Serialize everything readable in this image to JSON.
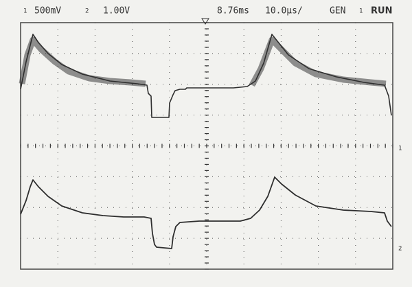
{
  "header": {
    "ch1_marker": "1",
    "ch1_scale": "500mV",
    "ch2_marker": "2",
    "ch2_scale": "1.00V",
    "trigger_delay": "8.76ms",
    "timebase": "10.0µs/",
    "mode": "GEN",
    "trigger_source": "1",
    "status": "RUN"
  },
  "markers": {
    "ch1_level": "1",
    "ch2_level": "2"
  }
}
